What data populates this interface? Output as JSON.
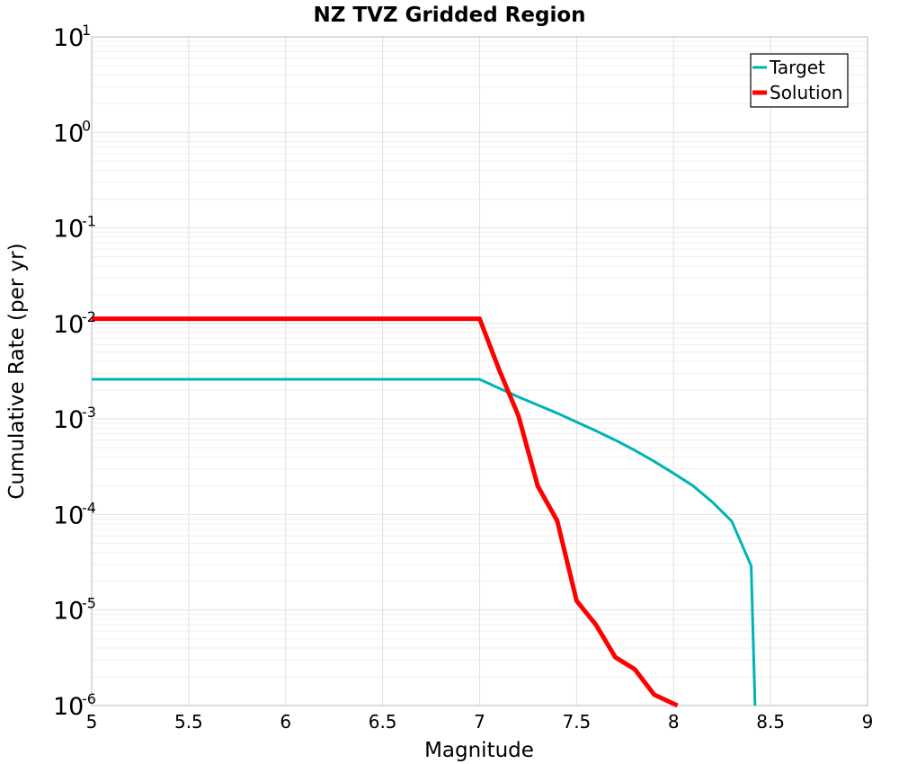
{
  "chart_data": {
    "type": "line",
    "title": "NZ TVZ Gridded Region",
    "xlabel": "Magnitude",
    "ylabel": "Cumulative Rate (per yr)",
    "xlim": [
      5,
      9
    ],
    "ylim_log10": [
      -6,
      1
    ],
    "yscale": "log",
    "grid": true,
    "legend_position": "top-right",
    "x_ticks": [
      {
        "value": 5,
        "label": "5"
      },
      {
        "value": 5.5,
        "label": "5.5"
      },
      {
        "value": 6,
        "label": "6"
      },
      {
        "value": 6.5,
        "label": "6.5"
      },
      {
        "value": 7,
        "label": "7"
      },
      {
        "value": 7.5,
        "label": "7.5"
      },
      {
        "value": 8,
        "label": "8"
      },
      {
        "value": 8.5,
        "label": "8.5"
      },
      {
        "value": 9,
        "label": "9"
      }
    ],
    "y_ticks": [
      {
        "exp": 1,
        "base": "10",
        "sup": "1"
      },
      {
        "exp": 0,
        "base": "10",
        "sup": "0"
      },
      {
        "exp": -1,
        "base": "10",
        "sup": "-1"
      },
      {
        "exp": -2,
        "base": "10",
        "sup": "-2"
      },
      {
        "exp": -3,
        "base": "10",
        "sup": "-3"
      },
      {
        "exp": -4,
        "base": "10",
        "sup": "-4"
      },
      {
        "exp": -5,
        "base": "10",
        "sup": "-5"
      },
      {
        "exp": -6,
        "base": "10",
        "sup": "-6"
      }
    ],
    "series": [
      {
        "name": "Target",
        "color": "#00b4b4",
        "points": [
          [
            5.0,
            0.0026
          ],
          [
            7.0,
            0.0026
          ],
          [
            7.1,
            0.0021
          ],
          [
            7.2,
            0.0017
          ],
          [
            7.3,
            0.0014
          ],
          [
            7.4,
            0.00115
          ],
          [
            7.5,
            0.00093
          ],
          [
            7.6,
            0.00075
          ],
          [
            7.7,
            0.0006
          ],
          [
            7.8,
            0.00047
          ],
          [
            7.9,
            0.00036
          ],
          [
            8.0,
            0.00027
          ],
          [
            8.1,
            0.0002
          ],
          [
            8.2,
            0.000135
          ],
          [
            8.3,
            8.5e-05
          ],
          [
            8.4,
            2.9e-05
          ],
          [
            8.42,
            1e-06
          ]
        ]
      },
      {
        "name": "Solution",
        "color": "#ff0000",
        "points": [
          [
            5.0,
            0.0112
          ],
          [
            7.0,
            0.0112
          ],
          [
            7.1,
            0.0033
          ],
          [
            7.2,
            0.00108
          ],
          [
            7.3,
            0.000198
          ],
          [
            7.4,
            8.6e-05
          ],
          [
            7.5,
            1.25e-05
          ],
          [
            7.6,
            7e-06
          ],
          [
            7.7,
            3.2e-06
          ],
          [
            7.8,
            2.4e-06
          ],
          [
            7.9,
            1.3e-06
          ],
          [
            8.02,
            1e-06
          ]
        ]
      }
    ]
  }
}
